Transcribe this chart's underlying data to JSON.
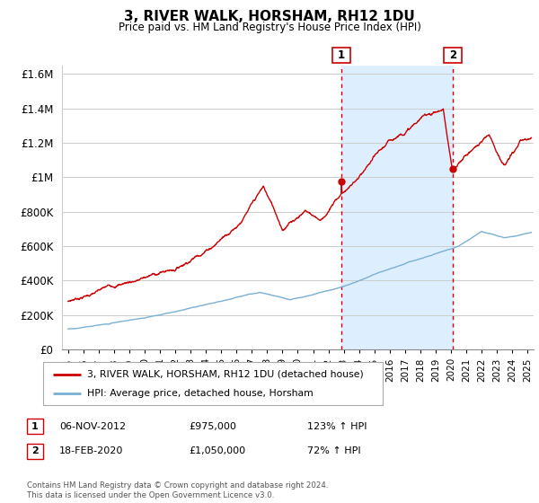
{
  "title": "3, RIVER WALK, HORSHAM, RH12 1DU",
  "subtitle": "Price paid vs. HM Land Registry's House Price Index (HPI)",
  "ylabel_vals": [
    "£0",
    "£200K",
    "£400K",
    "£600K",
    "£800K",
    "£1M",
    "£1.2M",
    "£1.4M",
    "£1.6M"
  ],
  "yticks": [
    0,
    200000,
    400000,
    600000,
    800000,
    1000000,
    1200000,
    1400000,
    1600000
  ],
  "ylim": [
    0,
    1650000
  ],
  "xlim_start": 1994.6,
  "xlim_end": 2025.4,
  "transaction1_x": 2012.85,
  "transaction1_y": 975000,
  "transaction2_x": 2020.12,
  "transaction2_y": 1050000,
  "transaction1_date": "06-NOV-2012",
  "transaction1_price": "£975,000",
  "transaction1_hpi": "123% ↑ HPI",
  "transaction2_date": "18-FEB-2020",
  "transaction2_price": "£1,050,000",
  "transaction2_hpi": "72% ↑ HPI",
  "line1_color": "#cc0000",
  "line2_color": "#7ab0d4",
  "shade_color": "#ddeeff",
  "vline_color": "#dd0000",
  "grid_color": "#cccccc",
  "bg_color": "#ffffff",
  "legend1_label": "3, RIVER WALK, HORSHAM, RH12 1DU (detached house)",
  "legend2_label": "HPI: Average price, detached house, Horsham",
  "footer": "Contains HM Land Registry data © Crown copyright and database right 2024.\nThis data is licensed under the Open Government Licence v3.0.",
  "xtick_years": [
    1995,
    1996,
    1997,
    1998,
    1999,
    2000,
    2001,
    2002,
    2003,
    2004,
    2005,
    2006,
    2007,
    2008,
    2009,
    2010,
    2011,
    2012,
    2013,
    2014,
    2015,
    2016,
    2017,
    2018,
    2019,
    2020,
    2021,
    2022,
    2023,
    2024,
    2025
  ]
}
